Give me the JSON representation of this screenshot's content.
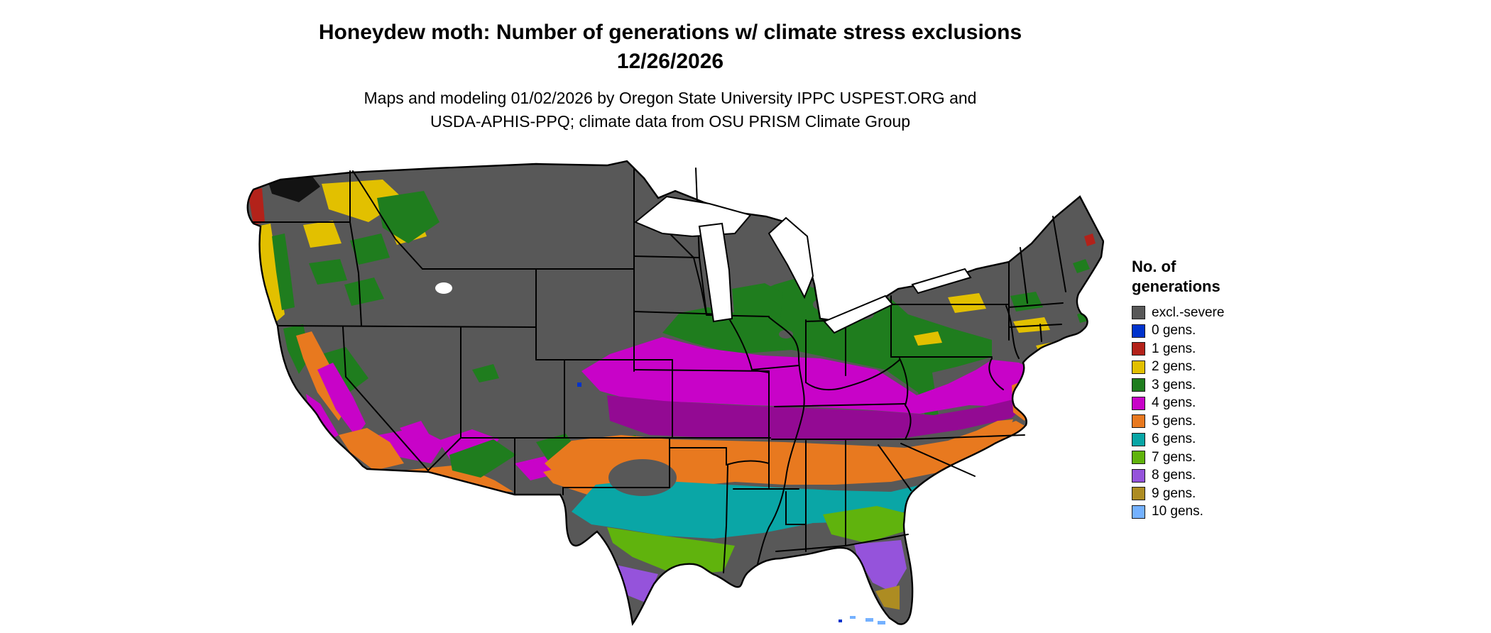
{
  "header": {
    "title_line1": "Honeydew moth: Number of generations w/ climate stress exclusions",
    "title_line2": "12/26/2026",
    "subtitle_line1": "Maps and modeling 01/02/2026 by Oregon State University IPPC USPEST.ORG and",
    "subtitle_line2": "USDA-APHIS-PPQ; climate data from OSU PRISM Climate Group"
  },
  "legend": {
    "title_line1": "No. of",
    "title_line2": "generations",
    "items": [
      {
        "label": "excl.-severe",
        "color": "#585858"
      },
      {
        "label": "0 gens.",
        "color": "#0033cc"
      },
      {
        "label": "1 gens.",
        "color": "#b3221a"
      },
      {
        "label": "2 gens.",
        "color": "#e2c000"
      },
      {
        "label": "3 gens.",
        "color": "#1f7d1e"
      },
      {
        "label": "4 gens.",
        "color": "#c803c8"
      },
      {
        "label": "5 gens.",
        "color": "#e8791f"
      },
      {
        "label": "6 gens.",
        "color": "#0aa6a6"
      },
      {
        "label": "7 gens.",
        "color": "#60b30d"
      },
      {
        "label": "8 gens.",
        "color": "#9553db"
      },
      {
        "label": "9 gens.",
        "color": "#ad8c22"
      },
      {
        "label": "10 gens.",
        "color": "#74b1ff"
      }
    ]
  },
  "map": {
    "region_label": "contiguous United States choropleth with state borders",
    "band_order_north_to_south": [
      "excl.-severe",
      "3 gens.",
      "4 gens.",
      "5 gens.",
      "6 gens.",
      "7 gens.",
      "8 gens.",
      "9 gens.",
      "10 gens."
    ]
  }
}
